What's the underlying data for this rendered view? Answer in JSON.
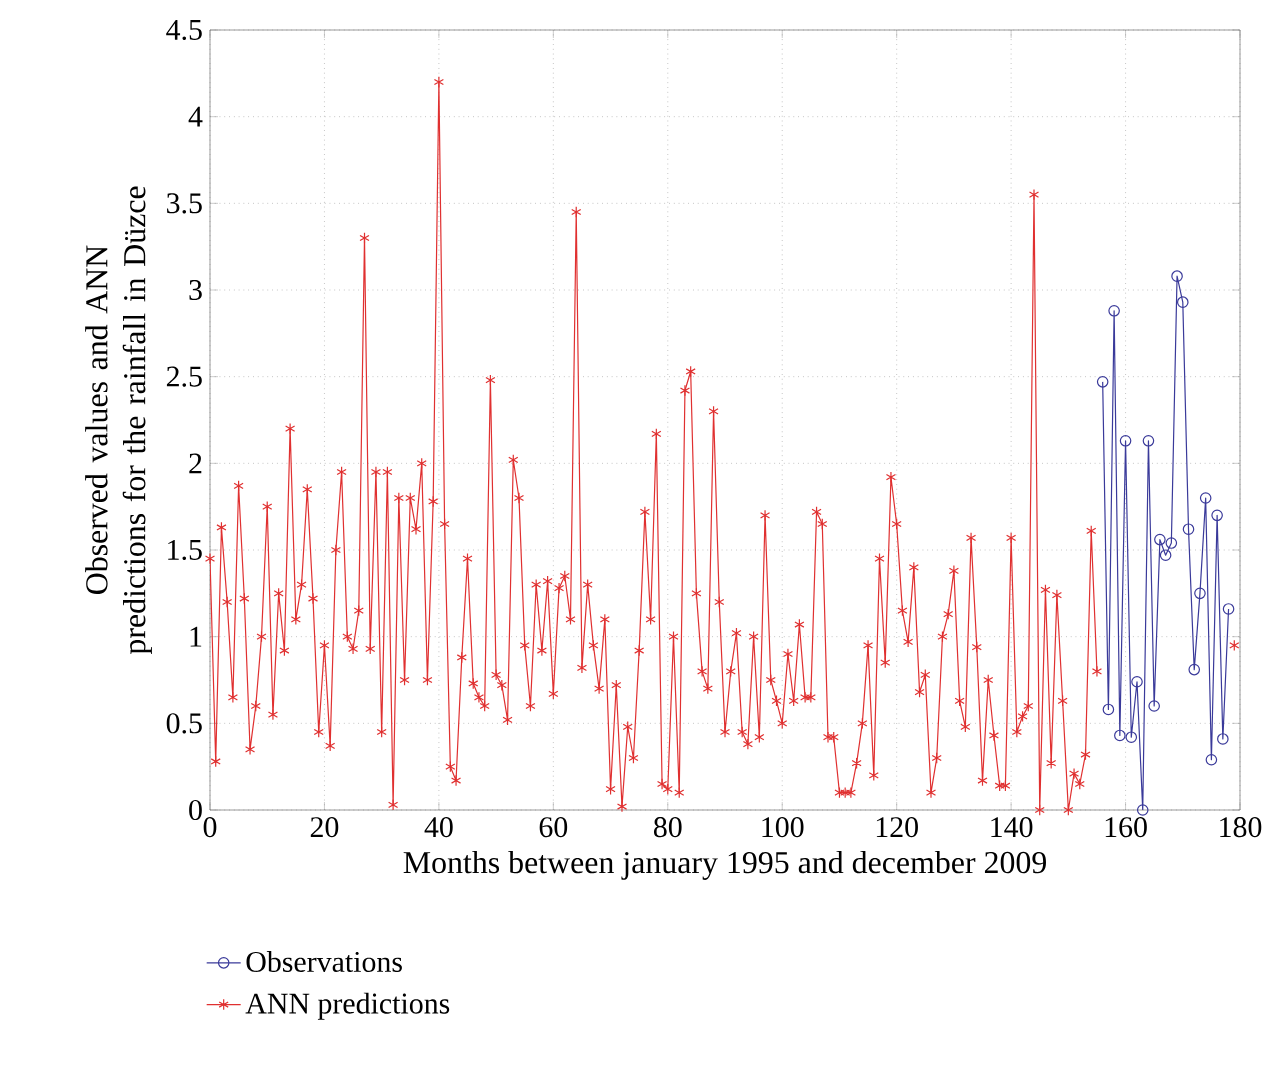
{
  "chart_data": {
    "type": "line",
    "xlabel": "Months between january 1995 and december 2009",
    "ylabel": "Observed values and ANN predictions for the rainfall in Düzce",
    "xlim": [
      0,
      180
    ],
    "ylim": [
      0,
      4.5
    ],
    "xticks": [
      0,
      20,
      40,
      60,
      80,
      100,
      120,
      140,
      160,
      180
    ],
    "yticks": [
      0,
      0.5,
      1,
      1.5,
      2,
      2.5,
      3,
      3.5,
      4,
      4.5
    ],
    "grid": true,
    "legend": "bottom",
    "line_style": "solid",
    "series": [
      {
        "name": "Observations",
        "color": "#3a3a9a",
        "marker": "circle",
        "x": [
          156,
          157,
          158,
          159,
          160,
          161,
          162,
          163,
          164,
          165,
          166,
          167,
          168,
          169,
          170,
          171,
          172,
          173,
          174,
          175,
          176,
          177,
          178
        ],
        "values": [
          2.47,
          0.58,
          2.88,
          0.43,
          2.13,
          0.42,
          0.74,
          0,
          2.13,
          0.6,
          1.56,
          1.47,
          1.54,
          3.08,
          2.93,
          1.62,
          0.81,
          1.25,
          1.8,
          0.29,
          1.7,
          0.41,
          1.16
        ]
      },
      {
        "name": "ANN predictions",
        "color": "#e03030",
        "marker": "cross",
        "x": [
          0,
          1,
          2,
          3,
          4,
          5,
          6,
          7,
          8,
          9,
          10,
          11,
          12,
          13,
          14,
          15,
          16,
          17,
          18,
          19,
          20,
          21,
          22,
          23,
          24,
          25,
          26,
          27,
          28,
          29,
          30,
          31,
          32,
          33,
          34,
          35,
          36,
          37,
          38,
          39,
          40,
          41,
          42,
          43,
          44,
          45,
          46,
          47,
          48,
          49,
          50,
          51,
          52,
          53,
          54,
          55,
          56,
          57,
          58,
          59,
          60,
          61,
          62,
          63,
          64,
          65,
          66,
          67,
          68,
          69,
          70,
          71,
          72,
          73,
          74,
          75,
          76,
          77,
          78,
          79,
          80,
          81,
          82,
          83,
          84,
          85,
          86,
          87,
          88,
          89,
          90,
          91,
          92,
          93,
          94,
          95,
          96,
          97,
          98,
          99,
          100,
          101,
          102,
          103,
          104,
          105,
          106,
          107,
          108,
          109,
          110,
          111,
          112,
          113,
          114,
          115,
          116,
          117,
          118,
          119,
          120,
          121,
          122,
          123,
          124,
          125,
          126,
          127,
          128,
          129,
          130,
          131,
          132,
          133,
          134,
          135,
          136,
          137,
          138,
          139,
          140,
          141,
          142,
          143,
          144,
          145,
          146,
          147,
          148,
          149,
          150,
          151,
          152,
          153,
          154,
          155,
          156,
          179
        ],
        "values": [
          1.45,
          0.28,
          1.63,
          1.2,
          0.65,
          1.87,
          1.22,
          0.35,
          0.6,
          1.0,
          1.75,
          0.55,
          1.25,
          0.92,
          2.2,
          1.1,
          1.3,
          1.85,
          1.22,
          0.45,
          0.95,
          0.37,
          1.5,
          1.95,
          1.0,
          0.93,
          1.15,
          3.3,
          0.93,
          1.95,
          0.45,
          1.95,
          0.03,
          1.8,
          0.75,
          1.8,
          1.62,
          2.0,
          0.75,
          1.78,
          4.2,
          1.65,
          0.25,
          0.17,
          0.88,
          1.45,
          0.73,
          0.65,
          0.6,
          2.48,
          0.78,
          0.72,
          0.52,
          2.02,
          1.8,
          0.95,
          0.6,
          1.3,
          0.92,
          1.32,
          0.67,
          1.28,
          1.35,
          1.1,
          3.45,
          0.82,
          1.3,
          0.95,
          0.7,
          1.1,
          0.12,
          0.72,
          0.02,
          0.48,
          0.3,
          0.92,
          1.72,
          1.1,
          2.17,
          0.15,
          0.12,
          1.0,
          0.1,
          2.42,
          2.53,
          1.25,
          0.8,
          0.7,
          2.3,
          1.2,
          0.45,
          0.8,
          1.02,
          0.45,
          0.38,
          1.0,
          0.42,
          1.7,
          0.75,
          0.63,
          0.5,
          0.9,
          0.63,
          1.07,
          0.65,
          0.65,
          1.72,
          1.65,
          0.42,
          0.42,
          0.1,
          0.1,
          0.1,
          0.27,
          0.5,
          0.95,
          0.2,
          1.45,
          0.85,
          1.92,
          1.65,
          1.15,
          0.97,
          1.4,
          0.68,
          0.78,
          0.1,
          0.3,
          1.0,
          1.13,
          1.38,
          0.63,
          0.48,
          1.57,
          0.94,
          0.17,
          0.75,
          0.43,
          0.14,
          0.14,
          1.57,
          0.45,
          0.54,
          0.6,
          3.55,
          0,
          1.27,
          0.27,
          1.24,
          0.63,
          0,
          0.21,
          0.15,
          0.32,
          1.61,
          0.8,
          null,
          0.95
        ]
      }
    ]
  }
}
